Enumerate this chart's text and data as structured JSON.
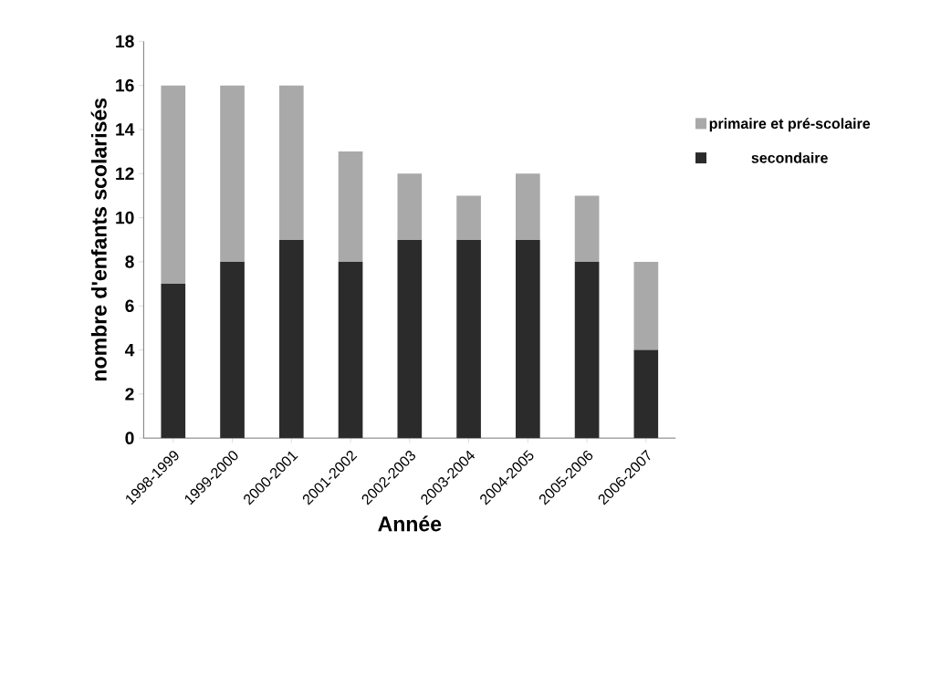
{
  "chart_data": {
    "type": "bar",
    "stacked": true,
    "xlabel": "Année",
    "ylabel": "nombre d'enfants scolarisés",
    "categories": [
      "1998-1999",
      "1999-2000",
      "2000-2001",
      "2001-2002",
      "2002-2003",
      "2003-2004",
      "2004-2005",
      "2005-2006",
      "2006-2007"
    ],
    "series": [
      {
        "name": "secondaire",
        "color": "#2b2b2b",
        "values": [
          7,
          8,
          9,
          8,
          9,
          9,
          9,
          8,
          4
        ]
      },
      {
        "name": "primaire et pré-scolaire",
        "color": "#a9a9a9",
        "values": [
          9,
          8,
          7,
          5,
          3,
          2,
          3,
          3,
          4
        ]
      }
    ],
    "ylim": [
      0,
      18
    ],
    "yticks": [
      0,
      2,
      4,
      6,
      8,
      10,
      12,
      14,
      16,
      18
    ],
    "legend": "right"
  }
}
